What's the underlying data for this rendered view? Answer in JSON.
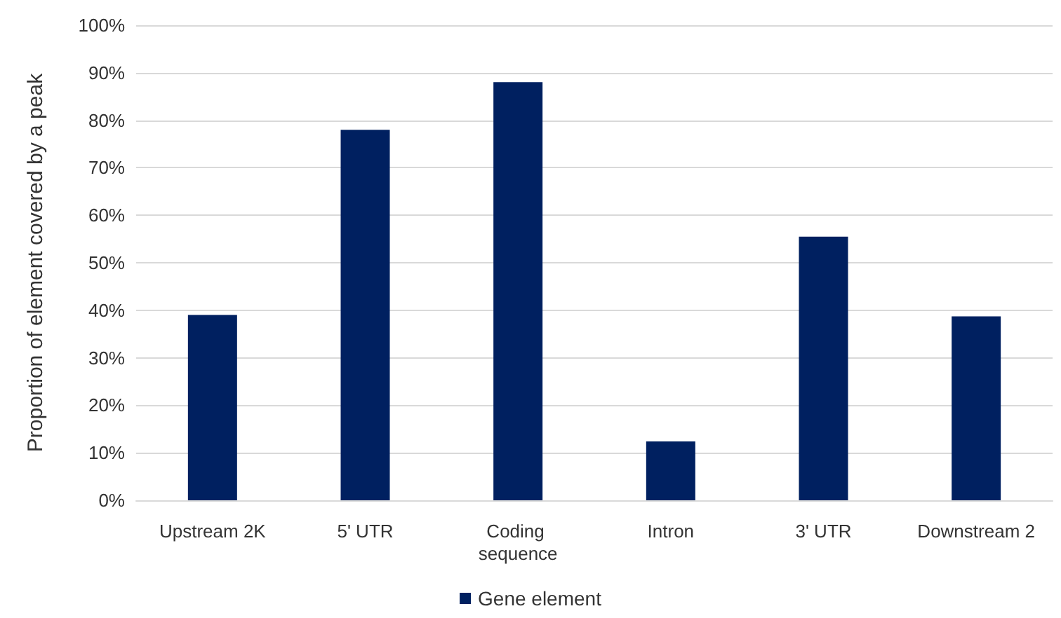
{
  "chart_data": {
    "type": "bar",
    "ylabel": "Proportion of element covered by a peak",
    "categories": [
      "Upstream 2K",
      "5' UTR",
      "Coding sequence",
      "Intron",
      "3' UTR",
      "Downstream 2"
    ],
    "series": [
      {
        "name": "Gene element",
        "color": "#002060",
        "values": [
          39,
          78,
          88,
          12.4,
          55.5,
          38.7
        ]
      }
    ],
    "ylim": [
      0,
      100
    ],
    "yticks": [
      {
        "value": 0,
        "label": "0%"
      },
      {
        "value": 10,
        "label": "10%"
      },
      {
        "value": 20,
        "label": "20%"
      },
      {
        "value": 30,
        "label": "30%"
      },
      {
        "value": 40,
        "label": "40%"
      },
      {
        "value": 50,
        "label": "50%"
      },
      {
        "value": 60,
        "label": "60%"
      },
      {
        "value": 70,
        "label": "70%"
      },
      {
        "value": 80,
        "label": "80%"
      },
      {
        "value": 90,
        "label": "90%"
      },
      {
        "value": 100,
        "label": "100%"
      }
    ],
    "grid": "y",
    "legend": "bottom"
  }
}
